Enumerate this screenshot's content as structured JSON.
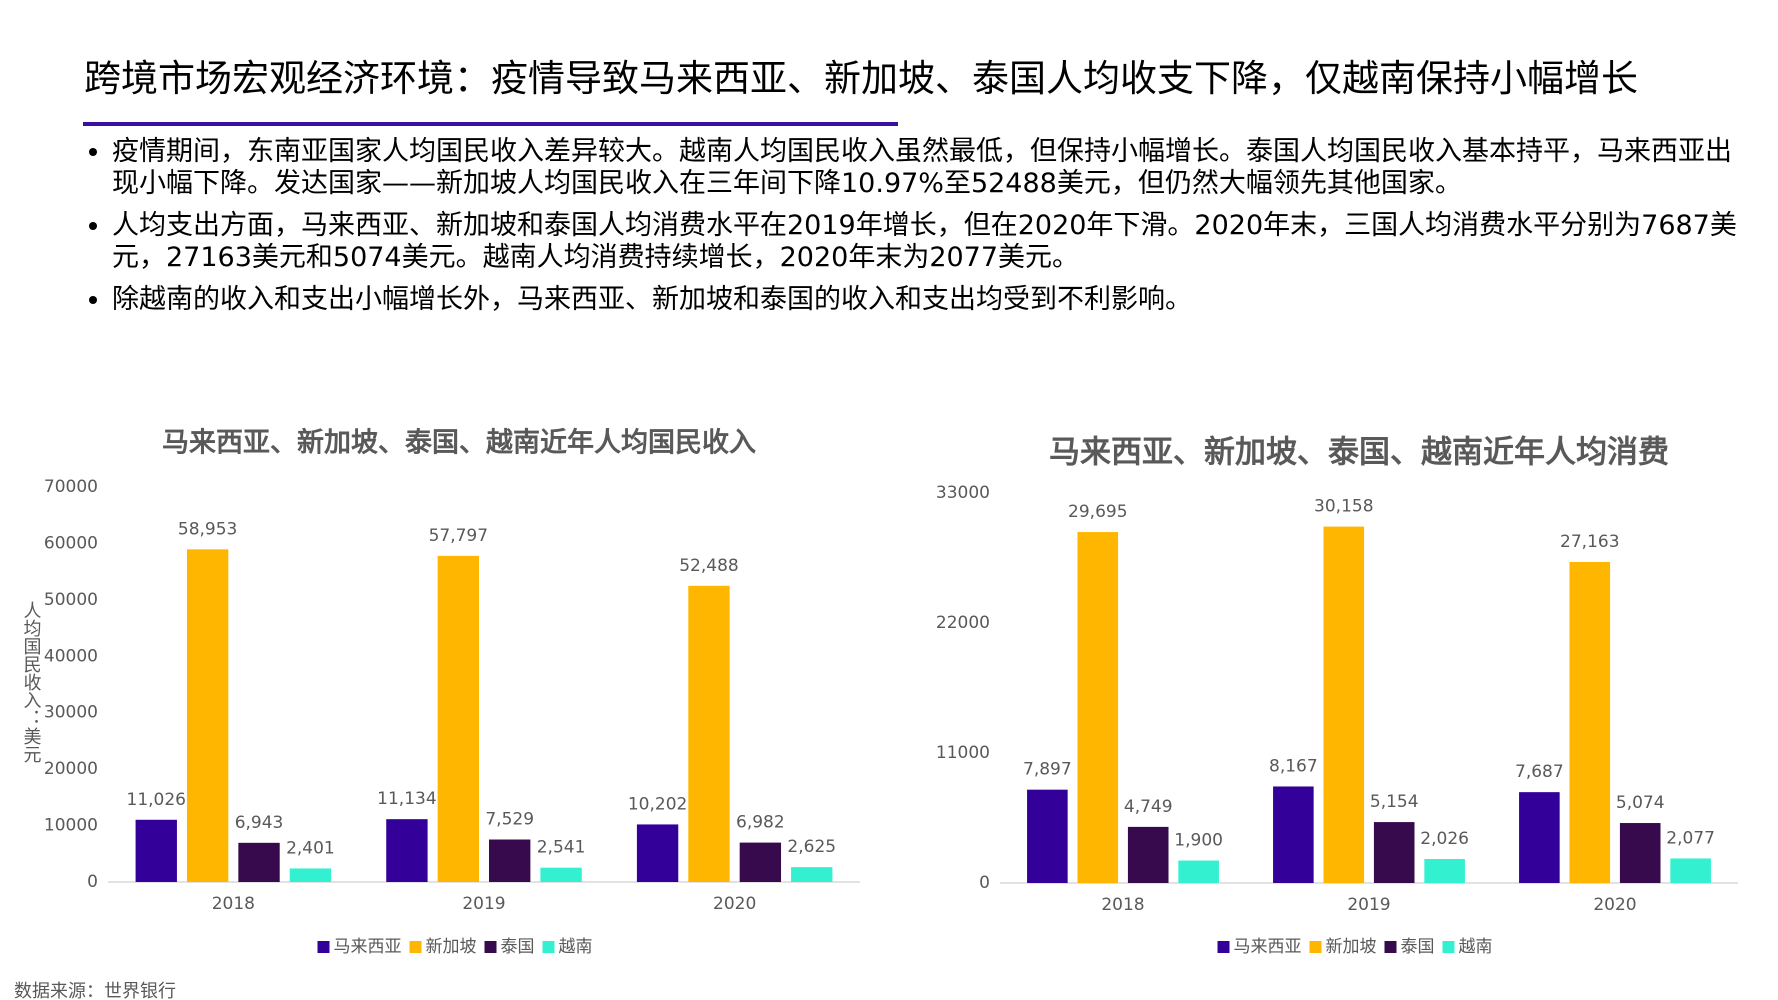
{
  "title": "跨境市场宏观经济环境：疫情导致马来西亚、新加坡、泰国人均收支下降，仅越南保持小幅增长",
  "bullets": [
    "疫情期间，东南亚国家人均国民收入差异较大。越南人均国民收入虽然最低，但保持小幅增长。泰国人均国民收入基本持平，马来西亚出现小幅下降。发达国家——新加坡人均国民收入在三年间下降10.97%至52488美元，但仍然大幅领先其他国家。",
    "人均支出方面，马来西亚、新加坡和泰国人均消费水平在2019年增长，但在2020年下滑。2020年末，三国人均消费水平分别为7687美元，27163美元和5074美元。越南人均消费持续增长，2020年末为2077美元。",
    "除越南的收入和支出小幅增长外，马来西亚、新加坡和泰国的收入和支出均受到不利影响。"
  ],
  "source": "数据来源：世界银行",
  "chart_data": [
    {
      "type": "bar",
      "title": "马来西亚、新加坡、泰国、越南近年人均国民收入",
      "y_label": "人均国民收入：美元",
      "categories": [
        "2018",
        "2019",
        "2020"
      ],
      "series": [
        {
          "name": "马来西亚",
          "color": "#330099",
          "values": [
            11026,
            11134,
            10202
          ],
          "value_labels": [
            "11,026",
            "11,134",
            "10,202"
          ]
        },
        {
          "name": "新加坡",
          "color": "#ffb600",
          "values": [
            58953,
            57797,
            52488
          ],
          "value_labels": [
            "58,953",
            "57,797",
            "52,488"
          ]
        },
        {
          "name": "泰国",
          "color": "#360a4c",
          "values": [
            6943,
            7529,
            6982
          ],
          "value_labels": [
            "6,943",
            "7,529",
            "6,982"
          ]
        },
        {
          "name": "越南",
          "color": "#33f0d0",
          "values": [
            2401,
            2541,
            2625
          ],
          "value_labels": [
            "2,401",
            "2,541",
            "2,625"
          ]
        }
      ],
      "ylim": [
        0,
        70000
      ],
      "yticks": [
        0,
        10000,
        20000,
        30000,
        40000,
        50000,
        60000,
        70000
      ],
      "legend": "bottom"
    },
    {
      "type": "bar",
      "title": "马来西亚、新加坡、泰国、越南近年人均消费",
      "categories": [
        "2018",
        "2019",
        "2020"
      ],
      "series": [
        {
          "name": "马来西亚",
          "color": "#330099",
          "values": [
            7897,
            8167,
            7687
          ],
          "value_labels": [
            "7,897",
            "8,167",
            "7,687"
          ]
        },
        {
          "name": "新加坡",
          "color": "#ffb600",
          "values": [
            29695,
            30158,
            27163
          ],
          "value_labels": [
            "29,695",
            "30,158",
            "27,163"
          ]
        },
        {
          "name": "泰国",
          "color": "#360a4c",
          "values": [
            4749,
            5154,
            5074
          ],
          "value_labels": [
            "4,749",
            "5,154",
            "5,074"
          ]
        },
        {
          "name": "越南",
          "color": "#33f0d0",
          "values": [
            1900,
            2026,
            2077
          ],
          "value_labels": [
            "1,900",
            "2,026",
            "2,077"
          ]
        }
      ],
      "ylim": [
        0,
        33000
      ],
      "yticks": [
        0,
        11000,
        22000,
        33000
      ],
      "legend": "bottom"
    }
  ]
}
